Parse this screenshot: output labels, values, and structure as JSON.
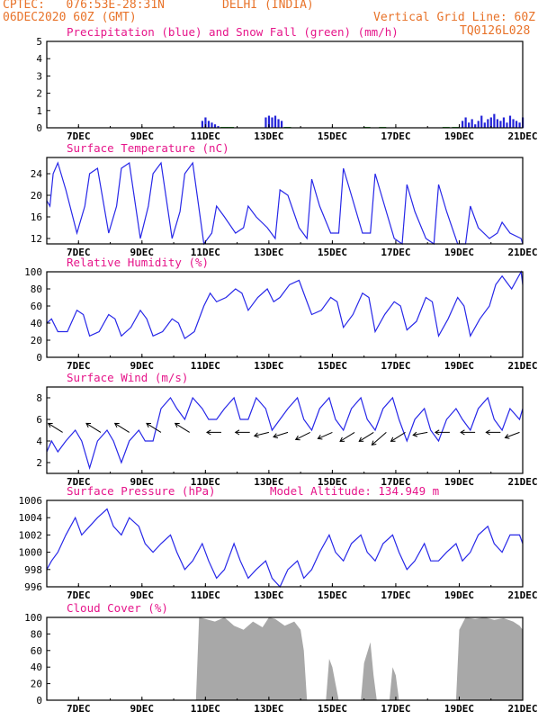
{
  "header": {
    "left1": "CPTEC:   076:53E-28:31N",
    "location": "DELHI (INDIA)",
    "left2": "06DEC2020 60Z (GMT)",
    "grid_note": "Vertical Grid Line: 60Z",
    "code": "TQ0126L028"
  },
  "colors": {
    "header": "#e8732a",
    "title": "#e6158a",
    "line": "#2727e8",
    "precip": "#2424d8",
    "snow": "#20a020",
    "cloud": "#a8a8a8",
    "wind_arrow": "#000000"
  },
  "chart_data": [
    {
      "type": "bar",
      "title": "Precipitation (blue) and Snow Fall (green) (mm/h)",
      "categories": [
        "7DEC",
        "9DEC",
        "11DEC",
        "13DEC",
        "15DEC",
        "17DEC",
        "19DEC",
        "21DEC"
      ],
      "ylim": [
        0,
        5
      ],
      "yticks": [
        "0",
        "1",
        "2",
        "3",
        "4",
        "5"
      ],
      "x_range": [
        6,
        21
      ],
      "series": [
        {
          "name": "Precipitation (blue)",
          "x": [
            10.9,
            11.0,
            11.1,
            11.2,
            11.3,
            11.4,
            12.9,
            13.0,
            13.1,
            13.2,
            13.3,
            13.4,
            19.1,
            19.2,
            19.3,
            19.4,
            19.5,
            19.6,
            19.7,
            19.8,
            19.9,
            20.0,
            20.1,
            20.2,
            20.3,
            20.4,
            20.5,
            20.6,
            20.7,
            20.8,
            20.9,
            21.0
          ],
          "values": [
            0.4,
            0.6,
            0.4,
            0.3,
            0.2,
            0.1,
            0.6,
            0.7,
            0.6,
            0.7,
            0.5,
            0.4,
            0.4,
            0.6,
            0.3,
            0.5,
            0.2,
            0.4,
            0.7,
            0.3,
            0.5,
            0.6,
            0.8,
            0.5,
            0.4,
            0.6,
            0.3,
            0.7,
            0.5,
            0.4,
            0.3,
            0.6
          ]
        },
        {
          "name": "Snow Fall (green)",
          "x": [
            11.5,
            11.7,
            13.5,
            16.0,
            16.5,
            18.5,
            18.8
          ],
          "values": [
            0.05,
            0.05,
            0.05,
            0.05,
            0.05,
            0.05,
            0.05
          ]
        }
      ]
    },
    {
      "type": "line",
      "title": "Surface Temperature (nC)",
      "categories": [
        "7DEC",
        "9DEC",
        "11DEC",
        "13DEC",
        "15DEC",
        "17DEC",
        "19DEC",
        "21DEC"
      ],
      "ylim": [
        11,
        27
      ],
      "yticks": [
        "12",
        "16",
        "20",
        "24"
      ],
      "x_range": [
        6,
        21
      ],
      "series": [
        {
          "name": "",
          "x": [
            6,
            6.1,
            6.2,
            6.35,
            6.6,
            6.95,
            7.2,
            7.35,
            7.6,
            7.95,
            8.2,
            8.35,
            8.6,
            8.95,
            9.2,
            9.35,
            9.6,
            9.95,
            10.2,
            10.35,
            10.6,
            10.95,
            11.2,
            11.35,
            11.6,
            11.95,
            12.2,
            12.35,
            12.6,
            12.95,
            13.2,
            13.35,
            13.6,
            13.95,
            14.2,
            14.35,
            14.6,
            14.95,
            15.2,
            15.35,
            15.6,
            15.95,
            16.2,
            16.35,
            16.6,
            16.95,
            17.2,
            17.35,
            17.6,
            17.95,
            18.2,
            18.35,
            18.6,
            18.95,
            19.2,
            19.35,
            19.6,
            19.95,
            20.2,
            20.35,
            20.6,
            20.95,
            21
          ],
          "values": [
            19,
            18,
            24,
            26,
            21,
            13,
            18,
            24,
            25,
            13,
            18,
            25,
            26,
            12,
            18,
            24,
            26,
            12,
            17,
            24,
            26,
            11,
            13,
            18,
            16,
            13,
            14,
            18,
            16,
            14,
            12,
            21,
            20,
            14,
            12,
            23,
            18,
            13,
            13,
            25,
            20,
            13,
            13,
            24,
            19,
            12,
            11,
            22,
            17,
            12,
            11,
            22,
            17,
            11,
            11,
            18,
            14,
            12,
            13,
            15,
            13,
            12,
            11
          ]
        }
      ]
    },
    {
      "type": "line",
      "title": "Relative Humidity (%)",
      "categories": [
        "7DEC",
        "9DEC",
        "11DEC",
        "13DEC",
        "15DEC",
        "17DEC",
        "19DEC",
        "21DEC"
      ],
      "ylim": [
        0,
        100
      ],
      "yticks": [
        "0",
        "20",
        "40",
        "60",
        "80",
        "100"
      ],
      "x_range": [
        6,
        21
      ],
      "series": [
        {
          "name": "",
          "x": [
            6,
            6.15,
            6.35,
            6.65,
            6.95,
            7.15,
            7.35,
            7.65,
            7.95,
            8.15,
            8.35,
            8.65,
            8.95,
            9.15,
            9.35,
            9.65,
            9.95,
            10.15,
            10.35,
            10.65,
            10.95,
            11.15,
            11.35,
            11.65,
            11.95,
            12.15,
            12.35,
            12.65,
            12.95,
            13.15,
            13.35,
            13.65,
            13.95,
            14.15,
            14.35,
            14.65,
            14.95,
            15.15,
            15.35,
            15.65,
            15.95,
            16.15,
            16.35,
            16.65,
            16.95,
            17.15,
            17.35,
            17.65,
            17.95,
            18.15,
            18.35,
            18.65,
            18.95,
            19.15,
            19.35,
            19.65,
            19.95,
            20.15,
            20.35,
            20.65,
            20.95,
            21
          ],
          "values": [
            40,
            45,
            30,
            30,
            55,
            50,
            25,
            30,
            50,
            45,
            25,
            35,
            55,
            45,
            25,
            30,
            45,
            40,
            22,
            30,
            60,
            75,
            65,
            70,
            80,
            75,
            55,
            70,
            80,
            65,
            70,
            85,
            90,
            70,
            50,
            55,
            70,
            65,
            35,
            50,
            75,
            70,
            30,
            50,
            65,
            60,
            32,
            42,
            70,
            65,
            25,
            45,
            70,
            60,
            25,
            45,
            60,
            85,
            95,
            80,
            100,
            85
          ]
        }
      ]
    },
    {
      "type": "line",
      "title": "Surface Wind (m/s)",
      "categories": [
        "7DEC",
        "9DEC",
        "11DEC",
        "13DEC",
        "15DEC",
        "17DEC",
        "19DEC",
        "21DEC"
      ],
      "ylim": [
        1,
        9
      ],
      "yticks": [
        "2",
        "4",
        "6",
        "8"
      ],
      "x_range": [
        6,
        21
      ],
      "series": [
        {
          "name": "",
          "x": [
            6,
            6.15,
            6.35,
            6.6,
            6.9,
            7.1,
            7.35,
            7.6,
            7.9,
            8.1,
            8.35,
            8.6,
            8.9,
            9.1,
            9.35,
            9.6,
            9.9,
            10.1,
            10.35,
            10.6,
            10.9,
            11.1,
            11.35,
            11.6,
            11.9,
            12.1,
            12.35,
            12.6,
            12.9,
            13.1,
            13.35,
            13.6,
            13.9,
            14.1,
            14.35,
            14.6,
            14.9,
            15.1,
            15.35,
            15.6,
            15.9,
            16.1,
            16.35,
            16.6,
            16.9,
            17.1,
            17.35,
            17.6,
            17.9,
            18.1,
            18.35,
            18.6,
            18.9,
            19.1,
            19.35,
            19.6,
            19.9,
            20.1,
            20.35,
            20.6,
            20.9,
            21
          ],
          "values": [
            3,
            4,
            3,
            4,
            5,
            4,
            1.5,
            4,
            5,
            4,
            2,
            4,
            5,
            4,
            4,
            7,
            8,
            7,
            6,
            8,
            7,
            6,
            6,
            7,
            8,
            6,
            6,
            8,
            7,
            5,
            6,
            7,
            8,
            6,
            5,
            7,
            8,
            6,
            5,
            7,
            8,
            6,
            5,
            7,
            8,
            6,
            4,
            6,
            7,
            5,
            4,
            6,
            7,
            6,
            5,
            7,
            8,
            6,
            5,
            7,
            6,
            7
          ]
        }
      ]
    },
    {
      "type": "line",
      "title": "Surface Pressure (hPa)",
      "annotation": "Model Altitude: 134.949 m",
      "categories": [
        "7DEC",
        "9DEC",
        "11DEC",
        "13DEC",
        "15DEC",
        "17DEC",
        "19DEC",
        "21DEC"
      ],
      "ylim": [
        996,
        1006
      ],
      "yticks": [
        "996",
        "998",
        "1000",
        "1002",
        "1004",
        "1006"
      ],
      "x_range": [
        6,
        21
      ],
      "series": [
        {
          "name": "",
          "x": [
            6,
            6.15,
            6.35,
            6.6,
            6.9,
            7.1,
            7.35,
            7.6,
            7.9,
            8.1,
            8.35,
            8.6,
            8.9,
            9.1,
            9.35,
            9.6,
            9.9,
            10.1,
            10.35,
            10.6,
            10.9,
            11.1,
            11.35,
            11.6,
            11.9,
            12.1,
            12.35,
            12.6,
            12.9,
            13.1,
            13.35,
            13.6,
            13.9,
            14.1,
            14.35,
            14.6,
            14.9,
            15.1,
            15.35,
            15.6,
            15.9,
            16.1,
            16.35,
            16.6,
            16.9,
            17.1,
            17.35,
            17.6,
            17.9,
            18.1,
            18.35,
            18.6,
            18.9,
            19.1,
            19.35,
            19.6,
            19.9,
            20.1,
            20.35,
            20.6,
            20.9,
            21
          ],
          "values": [
            998,
            999,
            1000,
            1002,
            1004,
            1002,
            1003,
            1004,
            1005,
            1003,
            1002,
            1004,
            1003,
            1001,
            1000,
            1001,
            1002,
            1000,
            998,
            999,
            1001,
            999,
            997,
            998,
            1001,
            999,
            997,
            998,
            999,
            997,
            996,
            998,
            999,
            997,
            998,
            1000,
            1002,
            1000,
            999,
            1001,
            1002,
            1000,
            999,
            1001,
            1002,
            1000,
            998,
            999,
            1001,
            999,
            999,
            1000,
            1001,
            999,
            1000,
            1002,
            1003,
            1001,
            1000,
            1002,
            1002,
            1001
          ]
        }
      ]
    },
    {
      "type": "area",
      "title": "Cloud Cover (%)",
      "categories": [
        "7DEC",
        "9DEC",
        "11DEC",
        "13DEC",
        "15DEC",
        "17DEC",
        "19DEC",
        "21DEC"
      ],
      "ylim": [
        0,
        100
      ],
      "yticks": [
        "0",
        "20",
        "40",
        "60",
        "80",
        "100"
      ],
      "x_range": [
        6,
        21
      ],
      "series": [
        {
          "name": "",
          "x": [
            10.7,
            10.8,
            11.0,
            11.3,
            11.6,
            11.9,
            12.2,
            12.5,
            12.8,
            13.0,
            13.2,
            13.5,
            13.8,
            14.0,
            14.1,
            14.2,
            14.8,
            14.9,
            15.0,
            15.1,
            15.2,
            15.9,
            16.0,
            16.2,
            16.3,
            16.4,
            16.8,
            16.9,
            17.0,
            17.1,
            18.9,
            19.0,
            19.2,
            19.5,
            19.8,
            20.1,
            20.4,
            20.7,
            20.9,
            21.0
          ],
          "values": [
            0,
            100,
            98,
            95,
            100,
            90,
            85,
            95,
            88,
            100,
            98,
            90,
            95,
            85,
            60,
            0,
            0,
            50,
            40,
            20,
            0,
            0,
            45,
            70,
            30,
            0,
            0,
            40,
            30,
            0,
            0,
            85,
            100,
            98,
            100,
            97,
            99,
            95,
            90,
            85
          ]
        }
      ]
    }
  ]
}
